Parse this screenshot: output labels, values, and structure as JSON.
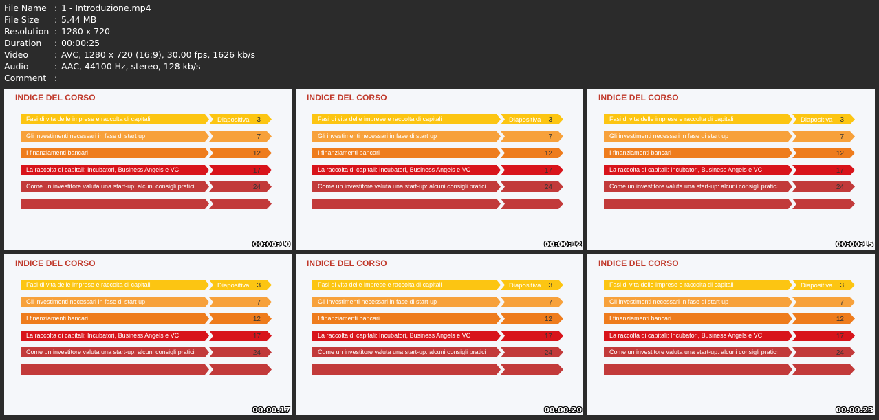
{
  "file_info": [
    {
      "label": "File Name",
      "value": "1 - Introduzione.mp4"
    },
    {
      "label": "File Size",
      "value": "5.44 MB"
    },
    {
      "label": "Resolution",
      "value": "1280 x 720"
    },
    {
      "label": "Duration",
      "value": "00:00:25"
    },
    {
      "label": "Video",
      "value": "AVC, 1280 x 720 (16:9), 30.00 fps, 1626 kb/s"
    },
    {
      "label": "Audio",
      "value": "AAC, 44100 Hz, stereo, 128 kb/s"
    },
    {
      "label": "Comment",
      "value": ""
    }
  ],
  "slide": {
    "title": "INDICE DEL CORSO",
    "tab_header": "Diapositiva",
    "rows": [
      {
        "text": "Fasi di vita delle imprese e raccolta di capitali",
        "num": "3",
        "color": "#fcc512"
      },
      {
        "text": "Gli investimenti necessari in fase di start up",
        "num": "7",
        "color": "#f7a13b"
      },
      {
        "text": "I finanziamenti bancari",
        "num": "12",
        "color": "#ee7c1d"
      },
      {
        "text": "La raccolta di capitali: Incubatori, Business Angels e VC",
        "num": "17",
        "color": "#d8141b"
      },
      {
        "text": "Come un investitore valuta una start-up: alcuni consigli pratici",
        "num": "24",
        "color": "#c23a3a"
      },
      {
        "text": "",
        "num": "",
        "color": "#c23a3a"
      }
    ]
  },
  "thumbnails": [
    {
      "timestamp": "00:00:10"
    },
    {
      "timestamp": "00:00:12"
    },
    {
      "timestamp": "00:00:15"
    },
    {
      "timestamp": "00:00:17"
    },
    {
      "timestamp": "00:00:20"
    },
    {
      "timestamp": "00:00:23"
    }
  ]
}
